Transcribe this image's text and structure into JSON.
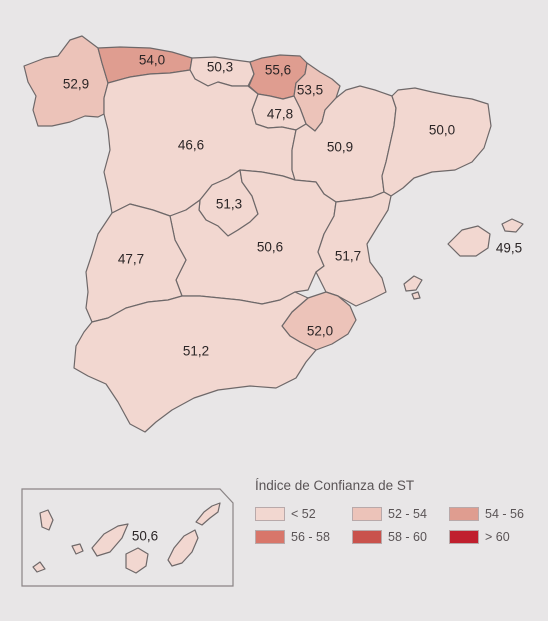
{
  "regions": [
    {
      "id": "galicia",
      "value": "52,9",
      "bin": 1
    },
    {
      "id": "asturias",
      "value": "54,0",
      "bin": 2
    },
    {
      "id": "cantabria",
      "value": "50,3",
      "bin": 0
    },
    {
      "id": "pais-vasco",
      "value": "55,6",
      "bin": 2
    },
    {
      "id": "navarra",
      "value": "53,5",
      "bin": 1
    },
    {
      "id": "la-rioja",
      "value": "47,8",
      "bin": 0
    },
    {
      "id": "castilla-leon",
      "value": "46,6",
      "bin": 0
    },
    {
      "id": "aragon",
      "value": "50,9",
      "bin": 0
    },
    {
      "id": "cataluna",
      "value": "50,0",
      "bin": 0
    },
    {
      "id": "madrid",
      "value": "51,3",
      "bin": 0
    },
    {
      "id": "castilla-la-mancha",
      "value": "50,6",
      "bin": 0
    },
    {
      "id": "extremadura",
      "value": "47,7",
      "bin": 0
    },
    {
      "id": "valencia",
      "value": "51,7",
      "bin": 0
    },
    {
      "id": "baleares",
      "value": "49,5",
      "bin": 0
    },
    {
      "id": "murcia",
      "value": "52,0",
      "bin": 1
    },
    {
      "id": "andalucia",
      "value": "51,2",
      "bin": 0
    },
    {
      "id": "canarias",
      "value": "50,6",
      "bin": 0
    }
  ],
  "legend": {
    "title": "Índice de Confianza de ST",
    "items": [
      {
        "label": "< 52",
        "color": "#f2d7d0"
      },
      {
        "label": "52 - 54",
        "color": "#ecc3b9"
      },
      {
        "label": "54 - 56",
        "color": "#df9d90"
      },
      {
        "label": "56 - 58",
        "color": "#d8766a"
      },
      {
        "label": "58 - 60",
        "color": "#c9524c"
      },
      {
        "label": "> 60",
        "color": "#c01f2e"
      }
    ]
  },
  "colors": {
    "background": "#e8e6e7",
    "border": "#6e6869",
    "inset_border": "#8a8485"
  }
}
